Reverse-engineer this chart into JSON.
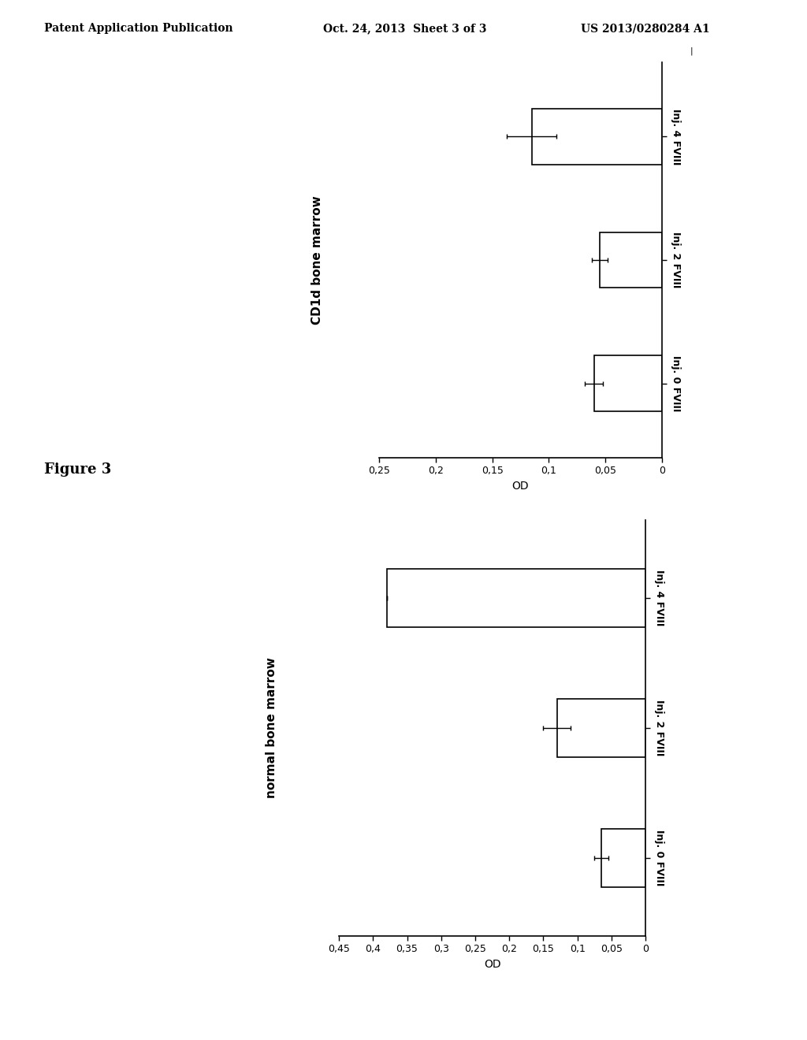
{
  "chart1": {
    "title": "CD1d bone marrow",
    "xlabel": "OD",
    "categories": [
      "Inj. 0 FVIII",
      "Inj. 2 FVIII",
      "Inj. 4 FVIII"
    ],
    "values": [
      0.06,
      0.055,
      0.115
    ],
    "errors": [
      0.008,
      0.007,
      0.022
    ],
    "xlim_max": 0.25,
    "xticks": [
      0.25,
      0.2,
      0.15,
      0.1,
      0.05,
      0
    ],
    "xtick_labels": [
      "0,25",
      "0,2",
      "0,15",
      "0,1",
      "0,05",
      "0"
    ]
  },
  "chart2": {
    "title": "normal bone marrow",
    "xlabel": "OD",
    "categories": [
      "Inj. 0 FVIII",
      "Inj. 2 FVIII",
      "Inj. 4 FVIII"
    ],
    "values": [
      0.065,
      0.13,
      0.38
    ],
    "errors": [
      0.01,
      0.02,
      0.0
    ],
    "xlim_max": 0.45,
    "xticks": [
      0.45,
      0.4,
      0.35,
      0.3,
      0.25,
      0.2,
      0.15,
      0.1,
      0.05,
      0
    ],
    "xtick_labels": [
      "0,45",
      "0,4",
      "0,35",
      "0,3",
      "0,25",
      "0,2",
      "0,15",
      "0,1",
      "0,05",
      "0"
    ]
  },
  "header_left": "Patent Application Publication",
  "header_center": "Oct. 24, 2013  Sheet 3 of 3",
  "header_right": "US 2013/0280284 A1",
  "figure_label": "Figure 3",
  "background_color": "#ffffff",
  "bar_color": "#ffffff",
  "bar_edgecolor": "#000000",
  "bar_linewidth": 1.2,
  "tick_fontsize": 9,
  "label_fontsize": 10,
  "title_fontsize": 11,
  "cat_fontsize": 9
}
